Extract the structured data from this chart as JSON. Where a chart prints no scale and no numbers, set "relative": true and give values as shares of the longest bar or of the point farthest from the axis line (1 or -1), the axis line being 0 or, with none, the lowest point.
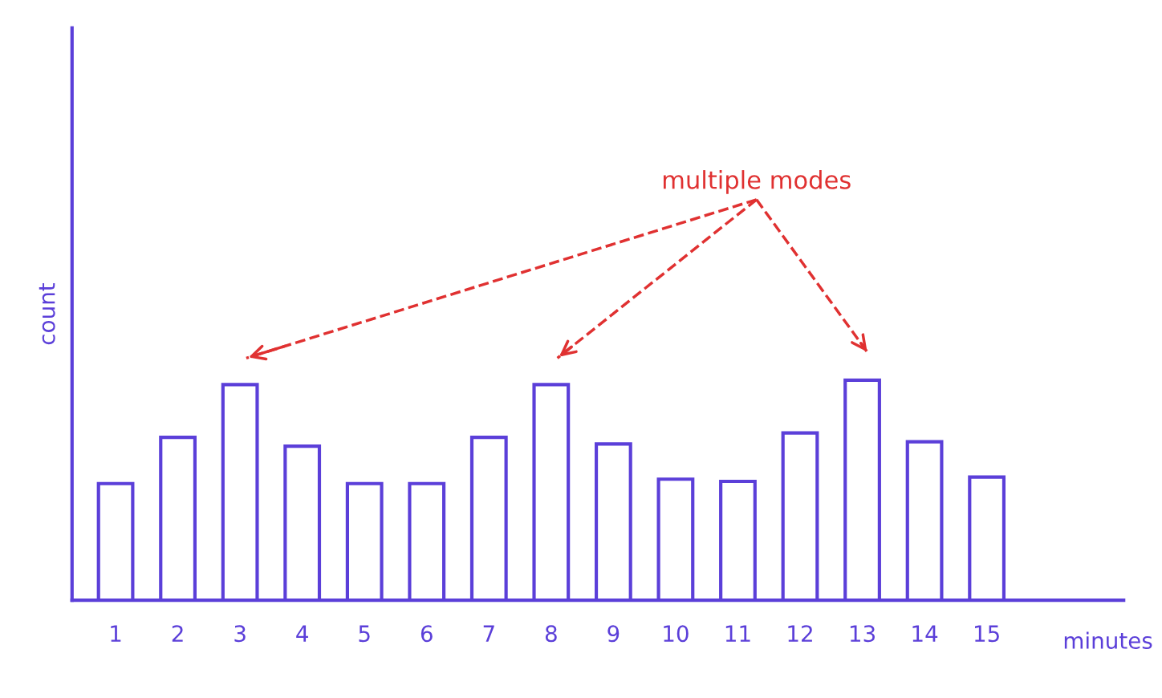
{
  "chart_data": {
    "type": "bar",
    "relative": true,
    "xlabel": "minutes",
    "ylabel": "count",
    "categories": [
      "1",
      "2",
      "3",
      "4",
      "5",
      "6",
      "7",
      "8",
      "9",
      "10",
      "11",
      "12",
      "13",
      "14",
      "15"
    ],
    "values": [
      0.53,
      0.74,
      0.98,
      0.7,
      0.53,
      0.53,
      0.74,
      0.98,
      0.71,
      0.55,
      0.54,
      0.76,
      1,
      0.72,
      0.56
    ],
    "color": "#5b3fd9",
    "grid": false,
    "annotations": [
      "multiple modes"
    ]
  }
}
